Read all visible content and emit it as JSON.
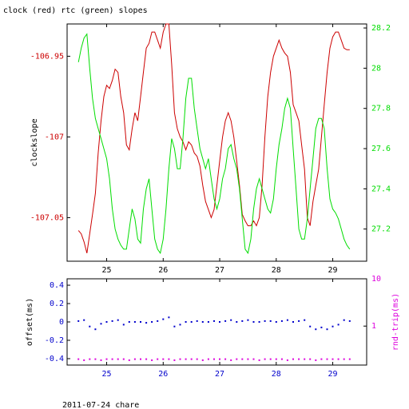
{
  "title": "clock (red) rtc (green) slopes",
  "footer": "2011-07-24 chare",
  "colors": {
    "clock": "#cc0000",
    "rtc": "#00dd00",
    "offset": "#0000cc",
    "roundtrip": "#dd00dd",
    "axis": "#000000"
  },
  "chart_data": [
    {
      "type": "line",
      "title": "clock (red) rtc (green) slopes",
      "xlabel": "",
      "ylabel": "clockslope",
      "y2label": "",
      "xlim": [
        24.3,
        29.6
      ],
      "ylim": [
        -107.077,
        -106.93
      ],
      "y2lim": [
        27.04,
        28.22
      ],
      "xticks": [
        25,
        26,
        27,
        28,
        29
      ],
      "yticks": [
        -106.95,
        -107,
        -107.05
      ],
      "ytick_labels": [
        "-106.95",
        "-107",
        "-107.05"
      ],
      "y2ticks": [
        27.2,
        27.4,
        27.6,
        27.8,
        28,
        28.2
      ],
      "y2tick_labels": [
        "27.2",
        "27.4",
        "27.6",
        "27.8",
        "28",
        "28.2"
      ],
      "series": [
        {
          "name": "clock",
          "axis": "left",
          "x": [
            24.5,
            24.55,
            24.6,
            24.65,
            24.7,
            24.75,
            24.8,
            24.85,
            24.9,
            24.95,
            25.0,
            25.05,
            25.1,
            25.15,
            25.2,
            25.25,
            25.3,
            25.35,
            25.4,
            25.45,
            25.5,
            25.55,
            25.6,
            25.65,
            25.7,
            25.75,
            25.8,
            25.85,
            25.9,
            25.95,
            26.0,
            26.05,
            26.1,
            26.15,
            26.2,
            26.25,
            26.3,
            26.35,
            26.4,
            26.45,
            26.5,
            26.55,
            26.6,
            26.65,
            26.7,
            26.75,
            26.8,
            26.85,
            26.9,
            26.95,
            27.0,
            27.05,
            27.1,
            27.15,
            27.2,
            27.25,
            27.3,
            27.35,
            27.4,
            27.45,
            27.5,
            27.55,
            27.6,
            27.65,
            27.7,
            27.75,
            27.8,
            27.85,
            27.9,
            27.95,
            28.0,
            28.05,
            28.1,
            28.15,
            28.2,
            28.25,
            28.3,
            28.35,
            28.4,
            28.45,
            28.5,
            28.55,
            28.6,
            28.65,
            28.7,
            28.75,
            28.8,
            28.85,
            28.9,
            28.95,
            29.0,
            29.05,
            29.1,
            29.15,
            29.2,
            29.25,
            29.3
          ],
          "y": [
            -107.058,
            -107.06,
            -107.065,
            -107.072,
            -107.06,
            -107.048,
            -107.035,
            -107.01,
            -106.99,
            -106.975,
            -106.968,
            -106.97,
            -106.965,
            -106.958,
            -106.96,
            -106.975,
            -106.985,
            -107.005,
            -107.008,
            -106.995,
            -106.985,
            -106.99,
            -106.975,
            -106.96,
            -106.945,
            -106.942,
            -106.935,
            -106.935,
            -106.94,
            -106.945,
            -106.935,
            -106.93,
            -106.93,
            -106.955,
            -106.985,
            -106.995,
            -107.0,
            -107.003,
            -107.008,
            -107.003,
            -107.005,
            -107.01,
            -107.012,
            -107.018,
            -107.03,
            -107.04,
            -107.045,
            -107.05,
            -107.045,
            -107.03,
            -107.015,
            -107.0,
            -106.99,
            -106.985,
            -106.99,
            -107.0,
            -107.015,
            -107.03,
            -107.048,
            -107.052,
            -107.055,
            -107.055,
            -107.052,
            -107.055,
            -107.05,
            -107.03,
            -107.0,
            -106.975,
            -106.96,
            -106.95,
            -106.945,
            -106.94,
            -106.945,
            -106.948,
            -106.95,
            -106.96,
            -106.98,
            -106.985,
            -106.99,
            -107.005,
            -107.02,
            -107.05,
            -107.055,
            -107.04,
            -107.03,
            -107.02,
            -107.0,
            -106.98,
            -106.96,
            -106.945,
            -106.938,
            -106.935,
            -106.935,
            -106.94,
            -106.945,
            -106.946,
            -106.946
          ]
        },
        {
          "name": "rtc",
          "axis": "right",
          "x": [
            24.5,
            24.55,
            24.6,
            24.65,
            24.7,
            24.75,
            24.8,
            24.85,
            24.9,
            24.95,
            25.0,
            25.05,
            25.1,
            25.15,
            25.2,
            25.25,
            25.3,
            25.35,
            25.4,
            25.45,
            25.5,
            25.55,
            25.6,
            25.65,
            25.7,
            25.75,
            25.8,
            25.85,
            25.9,
            25.95,
            26.0,
            26.05,
            26.1,
            26.15,
            26.2,
            26.25,
            26.3,
            26.35,
            26.4,
            26.45,
            26.5,
            26.55,
            26.6,
            26.65,
            26.7,
            26.75,
            26.8,
            26.85,
            26.9,
            26.95,
            27.0,
            27.05,
            27.1,
            27.15,
            27.2,
            27.25,
            27.3,
            27.35,
            27.4,
            27.45,
            27.5,
            27.55,
            27.6,
            27.65,
            27.7,
            27.75,
            27.8,
            27.85,
            27.9,
            27.95,
            28.0,
            28.05,
            28.1,
            28.15,
            28.2,
            28.25,
            28.3,
            28.35,
            28.4,
            28.45,
            28.5,
            28.55,
            28.6,
            28.65,
            28.7,
            28.75,
            28.8,
            28.85,
            28.9,
            28.95,
            29.0,
            29.05,
            29.1,
            29.15,
            29.2,
            29.25,
            29.3
          ],
          "y": [
            28.03,
            28.1,
            28.15,
            28.17,
            28.0,
            27.85,
            27.75,
            27.7,
            27.65,
            27.6,
            27.55,
            27.45,
            27.3,
            27.2,
            27.15,
            27.12,
            27.1,
            27.1,
            27.2,
            27.3,
            27.25,
            27.15,
            27.13,
            27.3,
            27.4,
            27.45,
            27.3,
            27.15,
            27.1,
            27.08,
            27.15,
            27.3,
            27.5,
            27.65,
            27.6,
            27.5,
            27.5,
            27.65,
            27.85,
            27.95,
            27.95,
            27.8,
            27.7,
            27.6,
            27.55,
            27.5,
            27.55,
            27.45,
            27.35,
            27.3,
            27.35,
            27.45,
            27.5,
            27.6,
            27.62,
            27.55,
            27.5,
            27.4,
            27.25,
            27.1,
            27.08,
            27.15,
            27.3,
            27.4,
            27.45,
            27.4,
            27.35,
            27.3,
            27.28,
            27.35,
            27.5,
            27.62,
            27.7,
            27.8,
            27.85,
            27.8,
            27.6,
            27.4,
            27.2,
            27.15,
            27.15,
            27.25,
            27.4,
            27.55,
            27.7,
            27.75,
            27.75,
            27.7,
            27.5,
            27.35,
            27.3,
            27.28,
            27.25,
            27.2,
            27.15,
            27.12,
            27.1
          ]
        }
      ]
    },
    {
      "type": "scatter",
      "xlabel": "",
      "ylabel": "offset(ms)",
      "y2label": "rnd-trip(ms)",
      "xlim": [
        24.3,
        29.6
      ],
      "ylim": [
        -0.47,
        0.47
      ],
      "y2scale": "log",
      "y2ticks": [
        1,
        10
      ],
      "y2tick_labels": [
        "1",
        "10"
      ],
      "xticks": [
        25,
        26,
        27,
        28,
        29
      ],
      "yticks": [
        0.4,
        0.2,
        0,
        -0.2,
        -0.4
      ],
      "ytick_labels": [
        "0.4",
        "0.2",
        "0",
        "-0.2",
        "-0.4"
      ],
      "series": [
        {
          "name": "offset",
          "axis": "left",
          "x": [
            24.5,
            24.6,
            24.7,
            24.8,
            24.9,
            25.0,
            25.1,
            25.2,
            25.3,
            25.4,
            25.5,
            25.6,
            25.7,
            25.8,
            25.9,
            26.0,
            26.1,
            26.2,
            26.3,
            26.4,
            26.5,
            26.6,
            26.7,
            26.8,
            26.9,
            27.0,
            27.1,
            27.2,
            27.3,
            27.4,
            27.5,
            27.6,
            27.7,
            27.8,
            27.9,
            28.0,
            28.1,
            28.2,
            28.3,
            28.4,
            28.5,
            28.6,
            28.7,
            28.8,
            28.9,
            29.0,
            29.1,
            29.2,
            29.3
          ],
          "y": [
            0.01,
            0.02,
            -0.05,
            -0.08,
            -0.02,
            0.0,
            0.01,
            0.02,
            -0.03,
            0.0,
            0.0,
            0.0,
            -0.01,
            0.0,
            0.01,
            0.03,
            0.05,
            -0.05,
            -0.03,
            0.0,
            0.0,
            0.01,
            0.0,
            0.0,
            0.01,
            0.0,
            0.01,
            0.02,
            0.0,
            0.01,
            0.02,
            0.0,
            0.0,
            0.01,
            0.01,
            0.0,
            0.01,
            0.02,
            0.0,
            0.01,
            0.02,
            -0.05,
            -0.08,
            -0.06,
            -0.08,
            -0.05,
            -0.03,
            0.02,
            0.01
          ]
        },
        {
          "name": "roundtrip",
          "axis": "right",
          "x": [
            24.5,
            24.6,
            24.7,
            24.8,
            24.9,
            25.0,
            25.1,
            25.2,
            25.3,
            25.4,
            25.5,
            25.6,
            25.7,
            25.8,
            25.9,
            26.0,
            26.1,
            26.2,
            26.3,
            26.4,
            26.5,
            26.6,
            26.7,
            26.8,
            26.9,
            27.0,
            27.1,
            27.2,
            27.3,
            27.4,
            27.5,
            27.6,
            27.7,
            27.8,
            27.9,
            28.0,
            28.1,
            28.2,
            28.3,
            28.4,
            28.5,
            28.6,
            28.7,
            28.8,
            28.9,
            29.0,
            29.1,
            29.2,
            29.3
          ],
          "y": [
            0.2,
            0.19,
            0.2,
            0.2,
            0.19,
            0.2,
            0.2,
            0.2,
            0.2,
            0.19,
            0.2,
            0.2,
            0.2,
            0.19,
            0.2,
            0.2,
            0.2,
            0.19,
            0.2,
            0.2,
            0.2,
            0.2,
            0.19,
            0.2,
            0.2,
            0.2,
            0.2,
            0.19,
            0.2,
            0.2,
            0.2,
            0.2,
            0.19,
            0.2,
            0.2,
            0.2,
            0.2,
            0.19,
            0.2,
            0.2,
            0.2,
            0.2,
            0.19,
            0.2,
            0.2,
            0.2,
            0.2,
            0.2,
            0.2
          ]
        }
      ]
    }
  ]
}
